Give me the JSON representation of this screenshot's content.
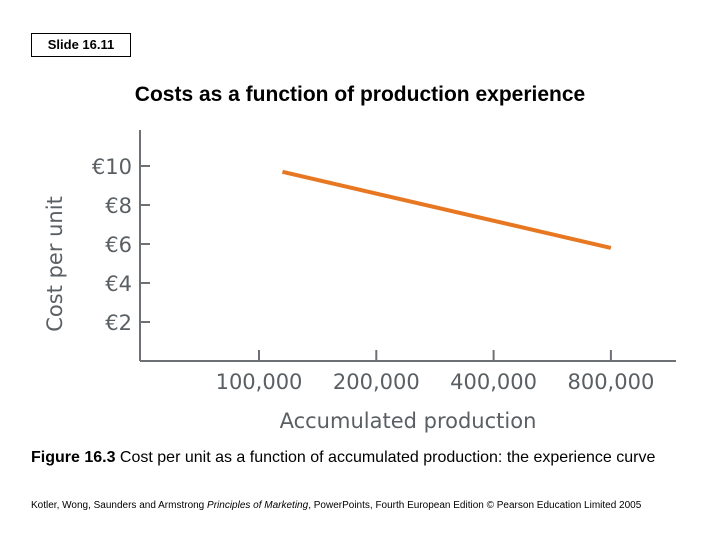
{
  "slide": {
    "label": "Slide 16.11",
    "title": "Costs as a function of production experience"
  },
  "chart_data": {
    "type": "line",
    "title": "",
    "xlabel": "Accumulated production",
    "ylabel": "Cost per unit",
    "categories": [
      "100,000",
      "200,000",
      "400,000",
      "800,000"
    ],
    "y_ticks": [
      {
        "value": 10,
        "label": "€10"
      },
      {
        "value": 8,
        "label": "€8"
      },
      {
        "value": 6,
        "label": "€6"
      },
      {
        "value": 4,
        "label": "€4"
      },
      {
        "value": 2,
        "label": "€2"
      }
    ],
    "ylim": [
      0,
      12
    ],
    "series": [
      {
        "name": "Cost per unit",
        "color": "#e87722",
        "points": [
          {
            "x": 0.2,
            "y": 9.7
          },
          {
            "x": 3.0,
            "y": 5.8
          }
        ]
      }
    ],
    "grid": false,
    "axis_color": "#6d7175"
  },
  "caption": {
    "figure_label": "Figure 16.3",
    "text": " Cost per unit as a function of accumulated production: the experience curve"
  },
  "footer": {
    "authors": "Kotler, Wong, Saunders and Armstrong ",
    "book": "Principles of Marketing",
    "rest": ", PowerPoints, Fourth European Edition © Pearson Education Limited 2005"
  }
}
